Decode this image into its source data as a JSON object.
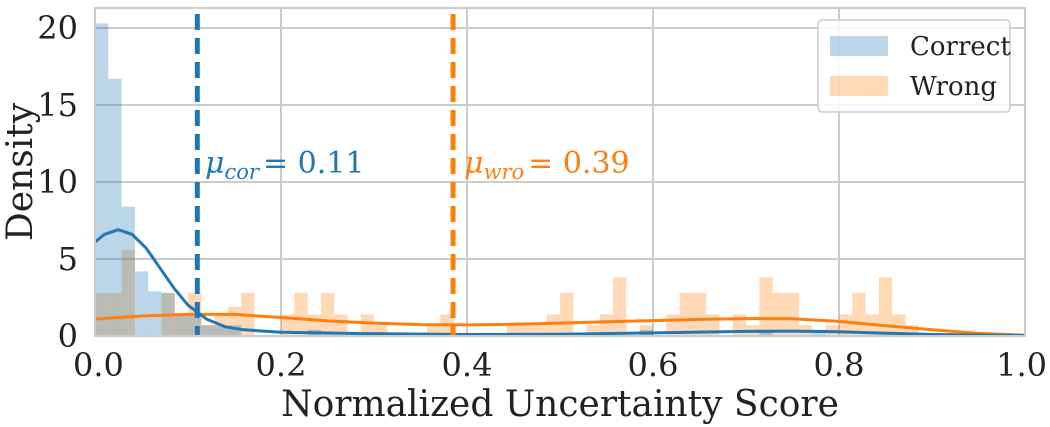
{
  "chart_data": {
    "type": "bar",
    "title": "",
    "xlabel": "Normalized Uncertainty Score",
    "ylabel": "Density",
    "xlim": [
      0.0,
      1.0
    ],
    "ylim": [
      0,
      21.3
    ],
    "x_ticks": [
      "0.0",
      "0.2",
      "0.4",
      "0.6",
      "0.8",
      "1.0"
    ],
    "y_ticks": [
      "0",
      "5",
      "10",
      "15",
      "20"
    ],
    "grid": true,
    "legend_position": "top-right",
    "bin_width": 0.0143,
    "series": [
      {
        "name": "Correct",
        "color": "#1f77b4",
        "bins": [
          {
            "x": 0.0,
            "y": 20.3
          },
          {
            "x": 0.0143,
            "y": 16.7
          },
          {
            "x": 0.0286,
            "y": 8.4
          },
          {
            "x": 0.0429,
            "y": 4.2
          },
          {
            "x": 0.0571,
            "y": 2.9
          },
          {
            "x": 0.0714,
            "y": 2.8
          },
          {
            "x": 0.0857,
            "y": 1.4
          },
          {
            "x": 0.1,
            "y": 1.4
          },
          {
            "x": 0.1143,
            "y": 0.7
          },
          {
            "x": 0.1286,
            "y": 0.7
          },
          {
            "x": 0.1429,
            "y": 0.7
          },
          {
            "x": 0.2286,
            "y": 0.4
          },
          {
            "x": 0.5857,
            "y": 0.4
          },
          {
            "x": 0.7143,
            "y": 0.4
          },
          {
            "x": 0.7714,
            "y": 0.4
          }
        ]
      },
      {
        "name": "Wrong",
        "color": "#ff7f0e",
        "bins": [
          {
            "x": 0.0,
            "y": 2.8
          },
          {
            "x": 0.0143,
            "y": 2.8
          },
          {
            "x": 0.0286,
            "y": 5.6
          },
          {
            "x": 0.0714,
            "y": 2.8
          },
          {
            "x": 0.0857,
            "y": 1.4
          },
          {
            "x": 0.1,
            "y": 2.8
          },
          {
            "x": 0.1143,
            "y": 0.7
          },
          {
            "x": 0.1286,
            "y": 1.4
          },
          {
            "x": 0.1429,
            "y": 1.9
          },
          {
            "x": 0.1571,
            "y": 2.8
          },
          {
            "x": 0.2,
            "y": 1.4
          },
          {
            "x": 0.2143,
            "y": 2.8
          },
          {
            "x": 0.2286,
            "y": 1.4
          },
          {
            "x": 0.2429,
            "y": 2.8
          },
          {
            "x": 0.2571,
            "y": 1.4
          },
          {
            "x": 0.2857,
            "y": 1.4
          },
          {
            "x": 0.3,
            "y": 0.7
          },
          {
            "x": 0.3571,
            "y": 0.7
          },
          {
            "x": 0.3714,
            "y": 1.4
          },
          {
            "x": 0.4429,
            "y": 0.7
          },
          {
            "x": 0.4571,
            "y": 0.7
          },
          {
            "x": 0.4714,
            "y": 0.7
          },
          {
            "x": 0.4857,
            "y": 1.4
          },
          {
            "x": 0.5,
            "y": 2.8
          },
          {
            "x": 0.5286,
            "y": 0.7
          },
          {
            "x": 0.5429,
            "y": 1.4
          },
          {
            "x": 0.5571,
            "y": 3.8
          },
          {
            "x": 0.5857,
            "y": 0.7
          },
          {
            "x": 0.6143,
            "y": 1.4
          },
          {
            "x": 0.6286,
            "y": 2.8
          },
          {
            "x": 0.6429,
            "y": 2.8
          },
          {
            "x": 0.6571,
            "y": 1.4
          },
          {
            "x": 0.6857,
            "y": 1.4
          },
          {
            "x": 0.7,
            "y": 0.7
          },
          {
            "x": 0.7143,
            "y": 3.8
          },
          {
            "x": 0.7286,
            "y": 2.8
          },
          {
            "x": 0.7429,
            "y": 2.8
          },
          {
            "x": 0.7571,
            "y": 0.7
          },
          {
            "x": 0.7857,
            "y": 0.7
          },
          {
            "x": 0.8,
            "y": 1.4
          },
          {
            "x": 0.8143,
            "y": 2.8
          },
          {
            "x": 0.8286,
            "y": 1.4
          },
          {
            "x": 0.8429,
            "y": 3.8
          },
          {
            "x": 0.8571,
            "y": 1.4
          },
          {
            "x": 0.8714,
            "y": 0.7
          }
        ],
        "kde": [
          [
            0.0,
            1.1
          ],
          [
            0.05,
            1.3
          ],
          [
            0.1,
            1.4
          ],
          [
            0.15,
            1.4
          ],
          [
            0.2,
            1.2
          ],
          [
            0.25,
            0.98
          ],
          [
            0.3,
            0.84
          ],
          [
            0.35,
            0.74
          ],
          [
            0.4,
            0.72
          ],
          [
            0.45,
            0.76
          ],
          [
            0.5,
            0.84
          ],
          [
            0.55,
            0.93
          ],
          [
            0.6,
            1.0
          ],
          [
            0.65,
            1.08
          ],
          [
            0.7,
            1.13
          ],
          [
            0.75,
            1.12
          ],
          [
            0.8,
            0.95
          ],
          [
            0.85,
            0.67
          ],
          [
            0.9,
            0.4
          ],
          [
            0.95,
            0.17
          ],
          [
            1.0,
            0.05
          ]
        ]
      }
    ],
    "kde_correct": [
      [
        0.0,
        6.1
      ],
      [
        0.01,
        6.6
      ],
      [
        0.025,
        6.9
      ],
      [
        0.04,
        6.6
      ],
      [
        0.055,
        5.7
      ],
      [
        0.07,
        4.4
      ],
      [
        0.085,
        3.1
      ],
      [
        0.1,
        2.0
      ],
      [
        0.12,
        1.1
      ],
      [
        0.14,
        0.6
      ],
      [
        0.16,
        0.4
      ],
      [
        0.2,
        0.25
      ],
      [
        0.3,
        0.15
      ],
      [
        0.4,
        0.1
      ],
      [
        0.5,
        0.12
      ],
      [
        0.6,
        0.2
      ],
      [
        0.7,
        0.3
      ],
      [
        0.75,
        0.32
      ],
      [
        0.8,
        0.28
      ],
      [
        0.85,
        0.18
      ],
      [
        0.9,
        0.1
      ],
      [
        1.0,
        0.04
      ]
    ],
    "mean_lines": [
      {
        "label": "μ_cor = 0.11",
        "x": 0.11,
        "color": "#1f77b4"
      },
      {
        "label": "μ_wro = 0.39",
        "x": 0.385,
        "color": "#ff7f0e"
      }
    ],
    "annotations": {
      "cor_symbol": "μ",
      "cor_sub": "cor",
      "cor_value": "= 0.11",
      "wro_symbol": "μ",
      "wro_sub": "wro",
      "wro_value": "= 0.39"
    },
    "legend": {
      "correct": "Correct",
      "wrong": "Wrong"
    }
  }
}
